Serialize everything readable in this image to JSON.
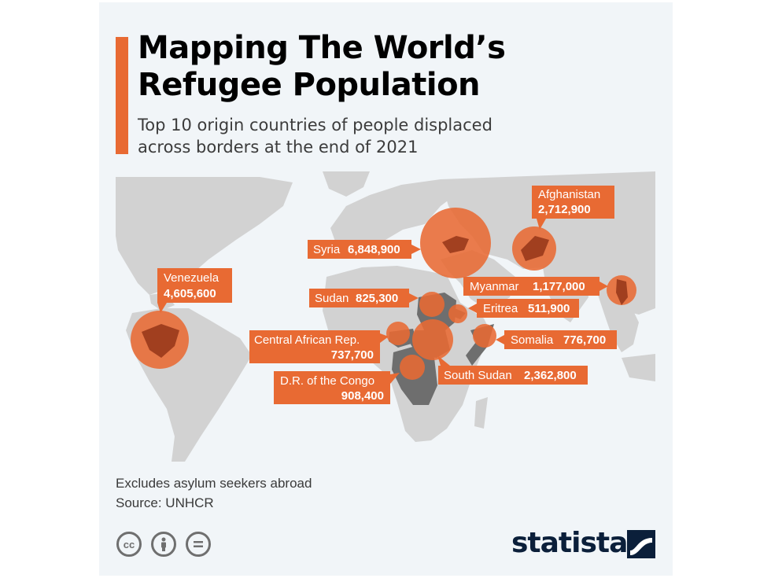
{
  "header": {
    "title_line1": "Mapping The World’s",
    "title_line2": "Refugee Population",
    "subtitle_line1": "Top 10 origin countries of people displaced",
    "subtitle_line2": "across borders at the end of 2021"
  },
  "footer": {
    "note": "Excludes asylum seekers abroad",
    "source": "Source: UNHCR",
    "license_icons": [
      "cc-icon",
      "person-icon",
      "equals-icon"
    ],
    "brand": "statista"
  },
  "colors": {
    "accent": "#e86a33",
    "highlight_country": "#6e6e6e",
    "land": "#d2d2d2",
    "ocean": "#f1f5f8",
    "brand": "#0b1f3a"
  },
  "chart_data": {
    "type": "bubble-map",
    "title": "Mapping The World’s Refugee Population",
    "subtitle": "Top 10 origin countries of people displaced across borders at the end of 2021",
    "series": [
      {
        "name": "Syria",
        "value": 6848900,
        "label": "6,848,900"
      },
      {
        "name": "Venezuela",
        "value": 4605600,
        "label": "4,605,600"
      },
      {
        "name": "Afghanistan",
        "value": 2712900,
        "label": "2,712,900"
      },
      {
        "name": "South Sudan",
        "value": 2362800,
        "label": "2,362,800"
      },
      {
        "name": "Myanmar",
        "value": 1177000,
        "label": "1,177,000"
      },
      {
        "name": "D.R. of the Congo",
        "value": 908400,
        "label": "908,400"
      },
      {
        "name": "Sudan",
        "value": 825300,
        "label": "825,300"
      },
      {
        "name": "Somalia",
        "value": 776700,
        "label": "776,700"
      },
      {
        "name": "Central African Rep.",
        "value": 737700,
        "label": "737,700"
      },
      {
        "name": "Eritrea",
        "value": 511900,
        "label": "511,900"
      }
    ]
  }
}
